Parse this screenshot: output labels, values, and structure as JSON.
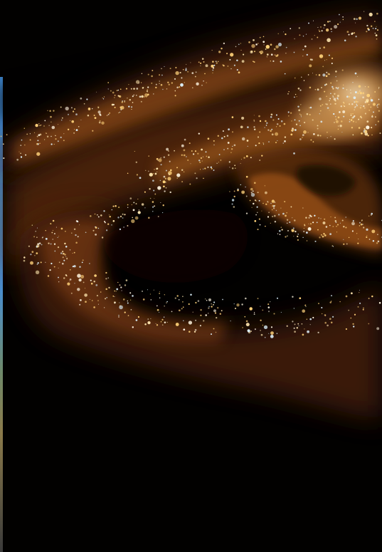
{
  "scene": {
    "subject": "galaxy-spiral-arm",
    "colors": {
      "background": "#020100",
      "dust_dark": "#2a1304",
      "dust_mid": "#6b3410",
      "dust_bright": "#b8621c",
      "glow_core": "#ffe7b0",
      "star_warm": "#ffd27a",
      "star_white": "#fff6e0",
      "star_blue": "#dff4ff",
      "edge_strip_top": "#3b7fc4",
      "edge_strip_bottom": "#3a3a3a"
    }
  }
}
